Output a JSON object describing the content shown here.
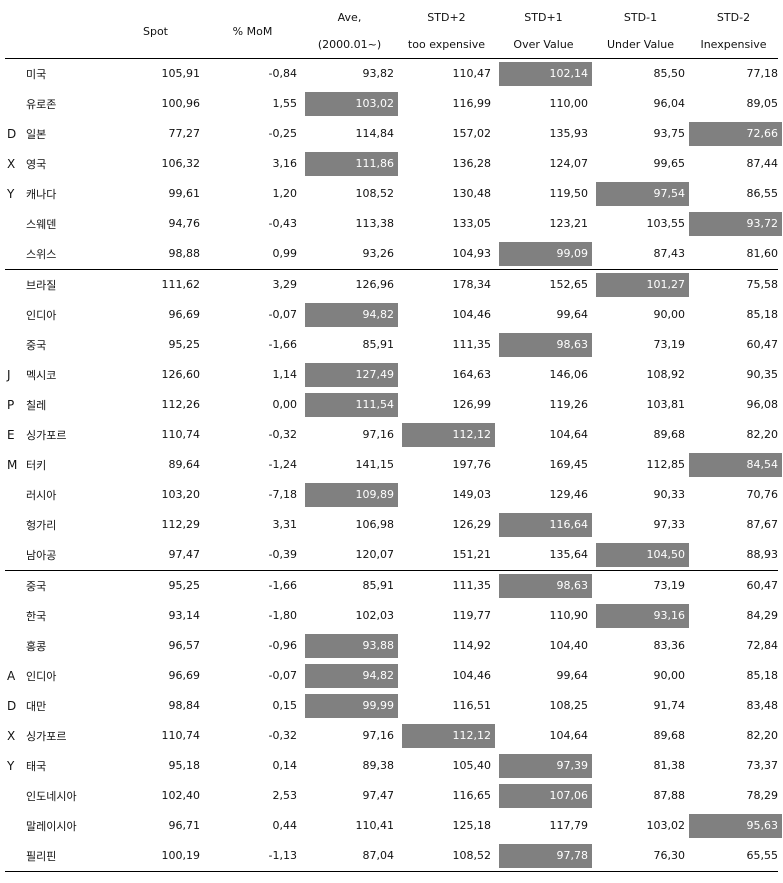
{
  "headers": {
    "spot": "Spot",
    "mom": "% MoM",
    "ave_l1": "Ave,",
    "ave_l2": "(2000.01~)",
    "std_p2_l1": "STD+2",
    "std_p2_l2": "too expensive",
    "std_p1_l1": "STD+1",
    "std_p1_l2": "Over Value",
    "std_m1_l1": "STD-1",
    "std_m1_l2": "Under Value",
    "std_m2_l1": "STD-2",
    "std_m2_l2": "Inexpensive"
  },
  "highlight_color": "#808080",
  "rows": [
    {
      "grp": "",
      "country": "미국",
      "spot": "105,91",
      "mom": "-0,84",
      "ave": "93,82",
      "p2": "110,47",
      "p1": "102,14",
      "m1": "85,50",
      "m2": "77,18",
      "hl": "p1"
    },
    {
      "grp": "",
      "country": "유로존",
      "spot": "100,96",
      "mom": "1,55",
      "ave": "103,02",
      "p2": "116,99",
      "p1": "110,00",
      "m1": "96,04",
      "m2": "89,05",
      "hl": "ave"
    },
    {
      "grp": "D",
      "country": "일본",
      "spot": "77,27",
      "mom": "-0,25",
      "ave": "114,84",
      "p2": "157,02",
      "p1": "135,93",
      "m1": "93,75",
      "m2": "72,66",
      "hl": "m2"
    },
    {
      "grp": "X",
      "country": "영국",
      "spot": "106,32",
      "mom": "3,16",
      "ave": "111,86",
      "p2": "136,28",
      "p1": "124,07",
      "m1": "99,65",
      "m2": "87,44",
      "hl": "ave"
    },
    {
      "grp": "Y",
      "country": "캐나다",
      "spot": "99,61",
      "mom": "1,20",
      "ave": "108,52",
      "p2": "130,48",
      "p1": "119,50",
      "m1": "97,54",
      "m2": "86,55",
      "hl": "m1"
    },
    {
      "grp": "",
      "country": "스웨덴",
      "spot": "94,76",
      "mom": "-0,43",
      "ave": "113,38",
      "p2": "133,05",
      "p1": "123,21",
      "m1": "103,55",
      "m2": "93,72",
      "hl": "m2"
    },
    {
      "grp": "",
      "country": "스위스",
      "spot": "98,88",
      "mom": "0,99",
      "ave": "93,26",
      "p2": "104,93",
      "p1": "99,09",
      "m1": "87,43",
      "m2": "81,60",
      "hl": "p1"
    },
    {
      "grp": "",
      "country": "브라질",
      "spot": "111,62",
      "mom": "3,29",
      "ave": "126,96",
      "p2": "178,34",
      "p1": "152,65",
      "m1": "101,27",
      "m2": "75,58",
      "hl": "m1"
    },
    {
      "grp": "",
      "country": "인디아",
      "spot": "96,69",
      "mom": "-0,07",
      "ave": "94,82",
      "p2": "104,46",
      "p1": "99,64",
      "m1": "90,00",
      "m2": "85,18",
      "hl": "ave"
    },
    {
      "grp": "",
      "country": "중국",
      "spot": "95,25",
      "mom": "-1,66",
      "ave": "85,91",
      "p2": "111,35",
      "p1": "98,63",
      "m1": "73,19",
      "m2": "60,47",
      "hl": "p1"
    },
    {
      "grp": "J",
      "country": "멕시코",
      "spot": "126,60",
      "mom": "1,14",
      "ave": "127,49",
      "p2": "164,63",
      "p1": "146,06",
      "m1": "108,92",
      "m2": "90,35",
      "hl": "ave"
    },
    {
      "grp": "P",
      "country": "칠레",
      "spot": "112,26",
      "mom": "0,00",
      "ave": "111,54",
      "p2": "126,99",
      "p1": "119,26",
      "m1": "103,81",
      "m2": "96,08",
      "hl": "ave"
    },
    {
      "grp": "E",
      "country": "싱가포르",
      "spot": "110,74",
      "mom": "-0,32",
      "ave": "97,16",
      "p2": "112,12",
      "p1": "104,64",
      "m1": "89,68",
      "m2": "82,20",
      "hl": "p2"
    },
    {
      "grp": "M",
      "country": "터키",
      "spot": "89,64",
      "mom": "-1,24",
      "ave": "141,15",
      "p2": "197,76",
      "p1": "169,45",
      "m1": "112,85",
      "m2": "84,54",
      "hl": "m2"
    },
    {
      "grp": "",
      "country": "러시아",
      "spot": "103,20",
      "mom": "-7,18",
      "ave": "109,89",
      "p2": "149,03",
      "p1": "129,46",
      "m1": "90,33",
      "m2": "70,76",
      "hl": "ave"
    },
    {
      "grp": "",
      "country": "헝가리",
      "spot": "112,29",
      "mom": "3,31",
      "ave": "106,98",
      "p2": "126,29",
      "p1": "116,64",
      "m1": "97,33",
      "m2": "87,67",
      "hl": "p1"
    },
    {
      "grp": "",
      "country": "남아공",
      "spot": "97,47",
      "mom": "-0,39",
      "ave": "120,07",
      "p2": "151,21",
      "p1": "135,64",
      "m1": "104,50",
      "m2": "88,93",
      "hl": "m1"
    },
    {
      "grp": "",
      "country": "중국",
      "spot": "95,25",
      "mom": "-1,66",
      "ave": "85,91",
      "p2": "111,35",
      "p1": "98,63",
      "m1": "73,19",
      "m2": "60,47",
      "hl": "p1"
    },
    {
      "grp": "",
      "country": "한국",
      "spot": "93,14",
      "mom": "-1,80",
      "ave": "102,03",
      "p2": "119,77",
      "p1": "110,90",
      "m1": "93,16",
      "m2": "84,29",
      "hl": "m1"
    },
    {
      "grp": "",
      "country": "홍콩",
      "spot": "96,57",
      "mom": "-0,96",
      "ave": "93,88",
      "p2": "114,92",
      "p1": "104,40",
      "m1": "83,36",
      "m2": "72,84",
      "hl": "ave"
    },
    {
      "grp": "A",
      "country": "인디아",
      "spot": "96,69",
      "mom": "-0,07",
      "ave": "94,82",
      "p2": "104,46",
      "p1": "99,64",
      "m1": "90,00",
      "m2": "85,18",
      "hl": "ave"
    },
    {
      "grp": "D",
      "country": "대만",
      "spot": "98,84",
      "mom": "0,15",
      "ave": "99,99",
      "p2": "116,51",
      "p1": "108,25",
      "m1": "91,74",
      "m2": "83,48",
      "hl": "ave"
    },
    {
      "grp": "X",
      "country": "싱가포르",
      "spot": "110,74",
      "mom": "-0,32",
      "ave": "97,16",
      "p2": "112,12",
      "p1": "104,64",
      "m1": "89,68",
      "m2": "82,20",
      "hl": "p2"
    },
    {
      "grp": "Y",
      "country": "태국",
      "spot": "95,18",
      "mom": "0,14",
      "ave": "89,38",
      "p2": "105,40",
      "p1": "97,39",
      "m1": "81,38",
      "m2": "73,37",
      "hl": "p1"
    },
    {
      "grp": "",
      "country": "인도네시아",
      "spot": "102,40",
      "mom": "2,53",
      "ave": "97,47",
      "p2": "116,65",
      "p1": "107,06",
      "m1": "87,88",
      "m2": "78,29",
      "hl": "p1"
    },
    {
      "grp": "",
      "country": "말레이시아",
      "spot": "96,71",
      "mom": "0,44",
      "ave": "110,41",
      "p2": "125,18",
      "p1": "117,79",
      "m1": "103,02",
      "m2": "95,63",
      "hl": "m2"
    },
    {
      "grp": "",
      "country": "필리핀",
      "spot": "100,19",
      "mom": "-1,13",
      "ave": "87,04",
      "p2": "108,52",
      "p1": "97,78",
      "m1": "76,30",
      "m2": "65,55",
      "hl": "p1"
    }
  ]
}
